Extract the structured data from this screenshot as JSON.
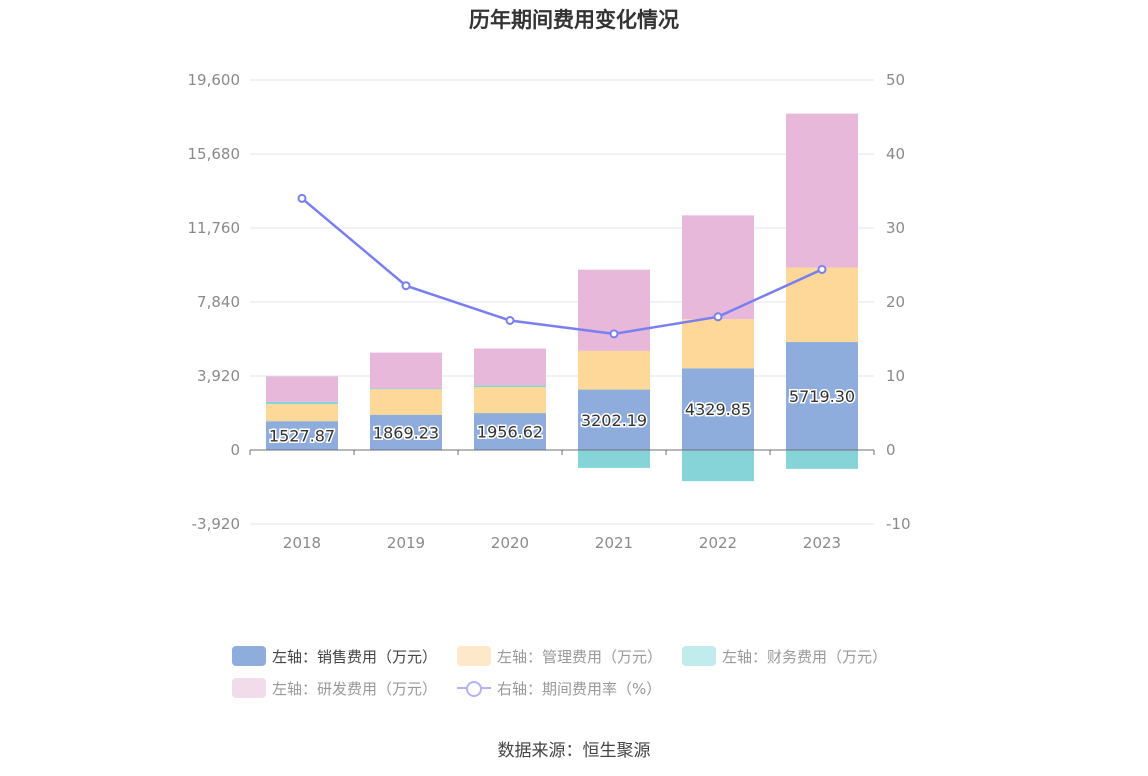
{
  "title": "历年期间费用变化情况",
  "source": "数据来源：恒生聚源",
  "chart_data": {
    "type": "bar+line",
    "categories": [
      "2018",
      "2019",
      "2020",
      "2021",
      "2022",
      "2023"
    ],
    "left_axis": {
      "ticks": [
        "19,600",
        "15,680",
        "11,760",
        "7,840",
        "3,920",
        "0",
        "-3,920"
      ],
      "min": -3920,
      "max": 19600
    },
    "right_axis": {
      "ticks": [
        "50",
        "40",
        "30",
        "20",
        "10",
        "0",
        "-10"
      ],
      "min": -10,
      "max": 50
    },
    "series": [
      {
        "name": "左轴：销售费用（万元）",
        "type": "bar",
        "color": "#8eaddc",
        "values": [
          1527.87,
          1869.23,
          1956.62,
          3202.19,
          4329.85,
          5719.3
        ],
        "labels": [
          "1527.87",
          "1869.23",
          "1956.62",
          "3202.19",
          "4329.85",
          "5719.30"
        ]
      },
      {
        "name": "左轴：管理费用（万元）",
        "type": "bar",
        "color": "#fed898",
        "values": [
          900,
          1350,
          1380,
          2050,
          2600,
          3950
        ]
      },
      {
        "name": "左轴：财务费用（万元）",
        "type": "bar",
        "color": "#86d4d8",
        "values": [
          120,
          40,
          90,
          -950,
          -1650,
          -1000
        ]
      },
      {
        "name": "左轴：研发费用（万元）",
        "type": "bar",
        "color": "#e7b8da",
        "values": [
          1350,
          1900,
          1950,
          4300,
          5500,
          8150
        ]
      },
      {
        "name": "右轴：期间费用率（%）",
        "type": "line",
        "color": "#7a7ff0",
        "values": [
          34.0,
          22.2,
          17.5,
          15.7,
          18.0,
          24.4
        ]
      }
    ]
  },
  "legend": [
    {
      "label": "左轴：销售费用（万元）",
      "color": "#8eaddc",
      "active": true
    },
    {
      "label": "左轴：管理费用（万元）",
      "color": "#fde9c9",
      "active": false
    },
    {
      "label": "左轴：财务费用（万元）",
      "color": "#c2ebed",
      "active": false
    },
    {
      "label": "左轴：研发费用（万元）",
      "color": "#f1dcec",
      "active": false
    },
    {
      "label": "右轴：期间费用率（%）",
      "color": "#b3b3f2",
      "active": false
    }
  ]
}
